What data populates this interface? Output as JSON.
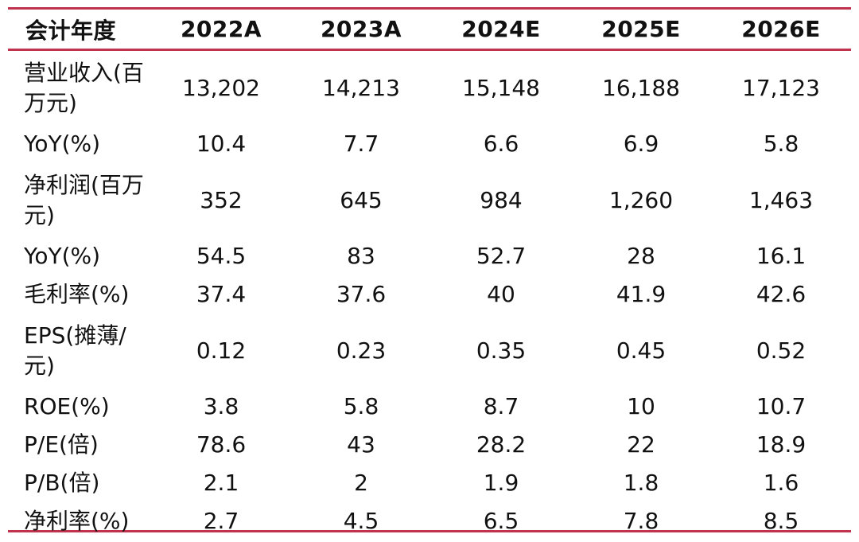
{
  "table": {
    "headers": [
      "会计年度",
      "2022A",
      "2023A",
      "2024E",
      "2025E",
      "2026E"
    ],
    "rows": [
      {
        "label": "营业收入(百万元)",
        "values": [
          "13,202",
          "14,213",
          "15,148",
          "16,188",
          "17,123"
        ]
      },
      {
        "label": "YoY(%)",
        "values": [
          "10.4",
          "7.7",
          "6.6",
          "6.9",
          "5.8"
        ]
      },
      {
        "label": "净利润(百万元)",
        "values": [
          "352",
          "645",
          "984",
          "1,260",
          "1,463"
        ]
      },
      {
        "label": "YoY(%)",
        "values": [
          "54.5",
          "83",
          "52.7",
          "28",
          "16.1"
        ]
      },
      {
        "label": "毛利率(%)",
        "values": [
          "37.4",
          "37.6",
          "40",
          "41.9",
          "42.6"
        ]
      },
      {
        "label": "EPS(摊薄/元)",
        "values": [
          "0.12",
          "0.23",
          "0.35",
          "0.45",
          "0.52"
        ]
      },
      {
        "label": "ROE(%)",
        "values": [
          "3.8",
          "5.8",
          "8.7",
          "10",
          "10.7"
        ]
      },
      {
        "label": "P/E(倍)",
        "values": [
          "78.6",
          "43",
          "28.2",
          "22",
          "18.9"
        ]
      },
      {
        "label": "P/B(倍)",
        "values": [
          "2.1",
          "2",
          "1.9",
          "1.8",
          "1.6"
        ]
      },
      {
        "label": "净利率(%)",
        "values": [
          "2.7",
          "4.5",
          "6.5",
          "7.8",
          "8.5"
        ]
      }
    ]
  },
  "colors": {
    "rule": "#c0334f",
    "text": "#111111"
  }
}
